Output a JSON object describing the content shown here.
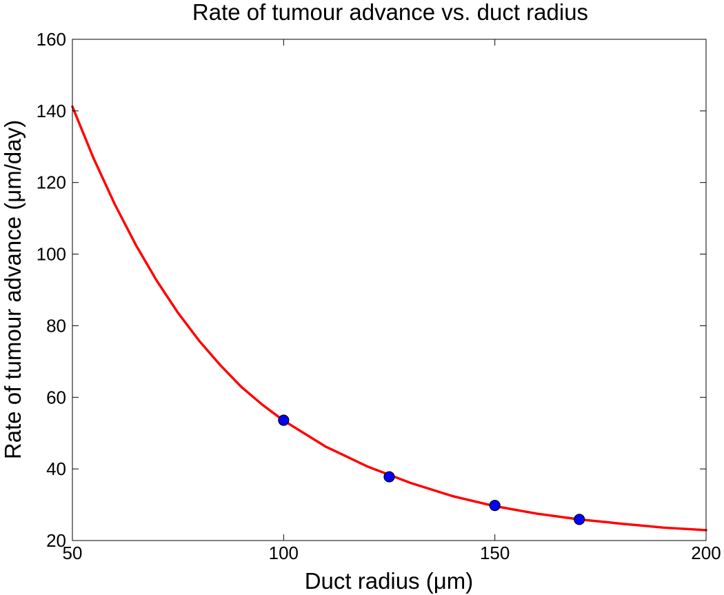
{
  "chart_data": {
    "type": "line",
    "title": "Rate of tumour advance vs. duct radius",
    "xlabel": "Duct radius (μm)",
    "ylabel": "Rate of tumour advance (μm/day)",
    "xlim": [
      50,
      200
    ],
    "ylim": [
      20,
      160
    ],
    "xticks": [
      "50",
      "100",
      "150",
      "200"
    ],
    "yticks": [
      "20",
      "40",
      "60",
      "80",
      "100",
      "120",
      "140",
      "160"
    ],
    "grid": false,
    "legend": false,
    "series": [
      {
        "kind": "line",
        "color": "#ff0000",
        "x": [
          50,
          55,
          60,
          65,
          70,
          75,
          80,
          85,
          90,
          95,
          100,
          110,
          120,
          130,
          140,
          150,
          160,
          170,
          180,
          190,
          200
        ],
        "y": [
          141.2,
          126.8,
          114.0,
          102.6,
          92.5,
          83.6,
          75.8,
          69.0,
          62.9,
          57.9,
          53.5,
          46.2,
          40.6,
          36.1,
          32.4,
          29.6,
          27.5,
          25.9,
          24.7,
          23.6,
          22.9
        ]
      },
      {
        "kind": "points",
        "color": "#0000ff",
        "x": [
          100,
          125,
          150,
          170
        ],
        "y": [
          53.6,
          37.8,
          29.8,
          25.9
        ]
      }
    ]
  }
}
